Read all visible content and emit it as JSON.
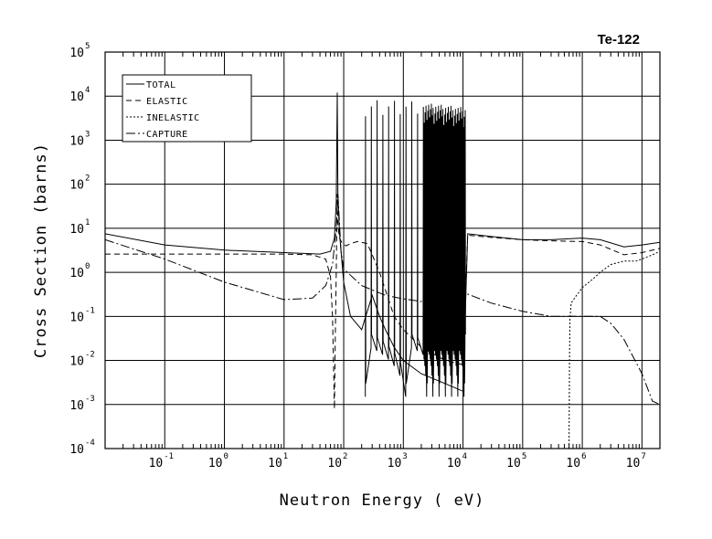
{
  "chart_data": {
    "type": "line",
    "title": "Te-122",
    "xlabel": "Neutron Energy ( eV)",
    "ylabel": "Cross Section (barns)",
    "x_scale": "log",
    "y_scale": "log",
    "xlim": [
      0.01,
      20000000
    ],
    "ylim": [
      0.0001,
      100000
    ],
    "grid": true,
    "legend_position": "top-left",
    "x_ticks": [
      {
        "base": "10",
        "exp": "-1",
        "value": 0.1
      },
      {
        "base": "10",
        "exp": "0",
        "value": 1
      },
      {
        "base": "10",
        "exp": "1",
        "value": 10
      },
      {
        "base": "10",
        "exp": "2",
        "value": 100
      },
      {
        "base": "10",
        "exp": "3",
        "value": 1000
      },
      {
        "base": "10",
        "exp": "4",
        "value": 10000
      },
      {
        "base": "10",
        "exp": "5",
        "value": 100000
      },
      {
        "base": "10",
        "exp": "6",
        "value": 1000000
      },
      {
        "base": "10",
        "exp": "7",
        "value": 10000000
      }
    ],
    "y_ticks": [
      {
        "base": "10",
        "exp": "-4",
        "value": 0.0001
      },
      {
        "base": "10",
        "exp": "-3",
        "value": 0.001
      },
      {
        "base": "10",
        "exp": "-2",
        "value": 0.01
      },
      {
        "base": "10",
        "exp": "-1",
        "value": 0.1
      },
      {
        "base": "10",
        "exp": "0",
        "value": 1
      },
      {
        "base": "10",
        "exp": "1",
        "value": 10
      },
      {
        "base": "10",
        "exp": "2",
        "value": 100
      },
      {
        "base": "10",
        "exp": "3",
        "value": 1000
      },
      {
        "base": "10",
        "exp": "4",
        "value": 10000
      },
      {
        "base": "10",
        "exp": "5",
        "value": 100000
      }
    ],
    "series": [
      {
        "name": "TOTAL",
        "dash": "solid",
        "x": [
          0.01,
          0.1,
          1,
          10,
          40,
          60,
          70,
          75,
          78,
          80,
          85,
          100,
          130,
          200,
          300,
          400,
          500,
          700,
          1000,
          2000,
          5000,
          10000,
          12000,
          30000,
          100000,
          300000,
          1000000,
          2000000,
          5000000,
          10000000,
          20000000
        ],
        "y": [
          7.5,
          4.2,
          3.2,
          2.8,
          2.6,
          3.0,
          6.0,
          40,
          12000,
          60,
          8,
          0.6,
          0.1,
          0.05,
          0.3,
          0.1,
          0.05,
          0.02,
          0.01,
          0.005,
          0.003,
          0.002,
          7.5,
          6.5,
          5.5,
          5.5,
          6.0,
          5.5,
          3.8,
          4.2,
          4.8
        ]
      },
      {
        "name": "ELASTIC",
        "dash": "dashed",
        "x": [
          0.01,
          0.1,
          1,
          10,
          30,
          50,
          60,
          65,
          70,
          72,
          75,
          78,
          80,
          85,
          95,
          110,
          130,
          170,
          250,
          400,
          700,
          1000,
          2000,
          5000,
          10000,
          12000,
          30000,
          100000,
          300000,
          1000000,
          2000000,
          5000000,
          10000000,
          20000000
        ],
        "y": [
          2.6,
          2.6,
          2.6,
          2.6,
          2.5,
          2.0,
          0.8,
          0.1,
          0.0008,
          0.02,
          1.0,
          60,
          12,
          6,
          4.5,
          4.0,
          4.5,
          5.0,
          4.5,
          1.0,
          0.1,
          0.05,
          0.02,
          0.01,
          0.008,
          7.0,
          6.2,
          5.5,
          5.2,
          5.0,
          4.2,
          2.5,
          2.8,
          3.5
        ]
      },
      {
        "name": "INELASTIC",
        "dash": "dotted",
        "x": [
          600000,
          610000,
          620000,
          650000,
          800000,
          1000000,
          1500000,
          2000000,
          3000000,
          5000000,
          8000000,
          10000000,
          15000000,
          20000000
        ],
        "y": [
          0.0001,
          0.01,
          0.08,
          0.2,
          0.3,
          0.45,
          0.7,
          1.0,
          1.5,
          1.8,
          1.8,
          2.0,
          2.5,
          3.0
        ]
      },
      {
        "name": "CAPTURE",
        "dash": "dash-dot",
        "x": [
          0.01,
          0.1,
          1,
          10,
          30,
          50,
          65,
          75,
          80,
          90,
          100,
          200,
          500,
          1000,
          3000,
          10000,
          30000,
          100000,
          300000,
          500000,
          1000000,
          2000000,
          3000000,
          5000000,
          10000000,
          15000000,
          20000000
        ],
        "y": [
          5.5,
          2.0,
          0.6,
          0.24,
          0.26,
          0.5,
          1.5,
          10,
          60,
          3,
          1.2,
          0.5,
          0.3,
          0.25,
          0.2,
          0.35,
          0.2,
          0.13,
          0.1,
          0.1,
          0.1,
          0.1,
          0.07,
          0.03,
          0.005,
          0.0012,
          0.001
        ]
      }
    ]
  }
}
